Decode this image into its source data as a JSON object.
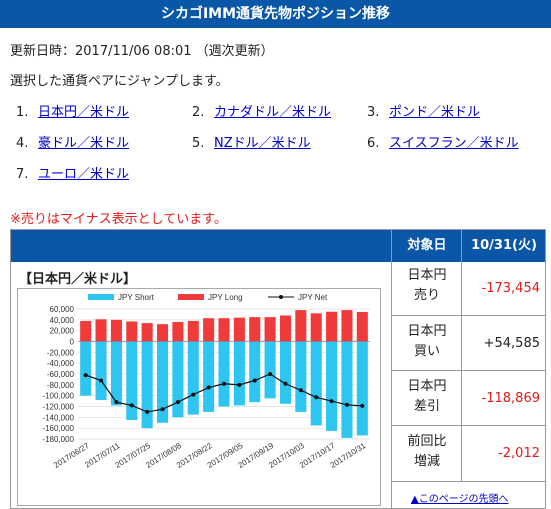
{
  "header": {
    "title": "シカゴIMM通貨先物ポジション推移"
  },
  "updated": "更新日時：2017/11/06 08:01 （週次更新）",
  "prompt": "選択した通貨ペアにジャンプします。",
  "currency_links": [
    {
      "num": "1.",
      "label": "日本円／米ドル"
    },
    {
      "num": "2.",
      "label": "カナダドル／米ドル"
    },
    {
      "num": "3.",
      "label": "ポンド／米ドル"
    },
    {
      "num": "4.",
      "label": "豪ドル／米ドル"
    },
    {
      "num": "5.",
      "label": "NZドル／米ドル"
    },
    {
      "num": "6.",
      "label": "スイスフラン／米ドル"
    },
    {
      "num": "7.",
      "label": "ユーロ／米ドル"
    }
  ],
  "note": "※売りはマイナス表示としています。",
  "table": {
    "head_target": "対象日",
    "head_date": "10/31(火)",
    "chart_title": "【日本円／米ドル】",
    "rows": [
      {
        "label_1": "日本円",
        "label_2": "売り",
        "value": "-173,454",
        "color": "#e21b1b"
      },
      {
        "label_1": "日本円",
        "label_2": "買い",
        "value": "+54,585",
        "color": "#222222"
      },
      {
        "label_1": "日本円",
        "label_2": "差引",
        "value": "-118,869",
        "color": "#e21b1b"
      },
      {
        "label_1": "前回比",
        "label_2": "増減",
        "value": "-2,012",
        "color": "#e21b1b"
      }
    ],
    "back_link": "▲このページの先頭へ"
  },
  "chart_data": {
    "type": "bar",
    "legend": [
      "JPY Short",
      "JPY Long",
      "JPY Net"
    ],
    "ylim": [
      -180000,
      60000
    ],
    "yticks": [
      60000,
      40000,
      20000,
      0,
      -20000,
      -40000,
      -60000,
      -80000,
      -100000,
      -120000,
      -140000,
      -160000,
      -180000
    ],
    "ytick_labels": [
      "60,000",
      "40,000",
      "20,000",
      "0",
      "-20,000",
      "-40,000",
      "-60,000",
      "-80,000",
      "-100,000",
      "-120,000",
      "-140,000",
      "-160,000",
      "-180,000"
    ],
    "categories": [
      "2017/06/27",
      "2017/07/04",
      "2017/07/11",
      "2017/07/18",
      "2017/07/25",
      "2017/08/01",
      "2017/08/08",
      "2017/08/15",
      "2017/08/22",
      "2017/08/29",
      "2017/09/05",
      "2017/09/12",
      "2017/09/19",
      "2017/09/26",
      "2017/10/03",
      "2017/10/10",
      "2017/10/17",
      "2017/10/24",
      "2017/10/31"
    ],
    "xtick_labels": [
      "2017/06/27",
      "2017/07/11",
      "2017/07/25",
      "2017/08/08",
      "2017/08/22",
      "2017/09/05",
      "2017/09/19",
      "2017/10/03",
      "2017/10/17",
      "2017/10/31"
    ],
    "series": [
      {
        "name": "JPY Short",
        "color": "#2ec6f0",
        "values": [
          -100000,
          -108000,
          -118000,
          -145000,
          -160000,
          -150000,
          -140000,
          -135000,
          -130000,
          -120000,
          -118000,
          -112000,
          -105000,
          -115000,
          -130000,
          -155000,
          -165000,
          -178000,
          -173454
        ]
      },
      {
        "name": "JPY Long",
        "color": "#f03b3b",
        "values": [
          38000,
          41000,
          40000,
          37000,
          34000,
          32000,
          36000,
          38000,
          43000,
          43000,
          44000,
          45000,
          45000,
          48000,
          58000,
          52000,
          55000,
          58000,
          54585
        ]
      },
      {
        "name": "JPY Net",
        "color": "#111111",
        "values": [
          -62000,
          -72000,
          -112000,
          -118000,
          -130000,
          -125000,
          -112000,
          -98000,
          -85000,
          -78000,
          -80000,
          -72000,
          -60000,
          -78000,
          -90000,
          -103000,
          -110000,
          -116857,
          -118869
        ]
      }
    ]
  }
}
